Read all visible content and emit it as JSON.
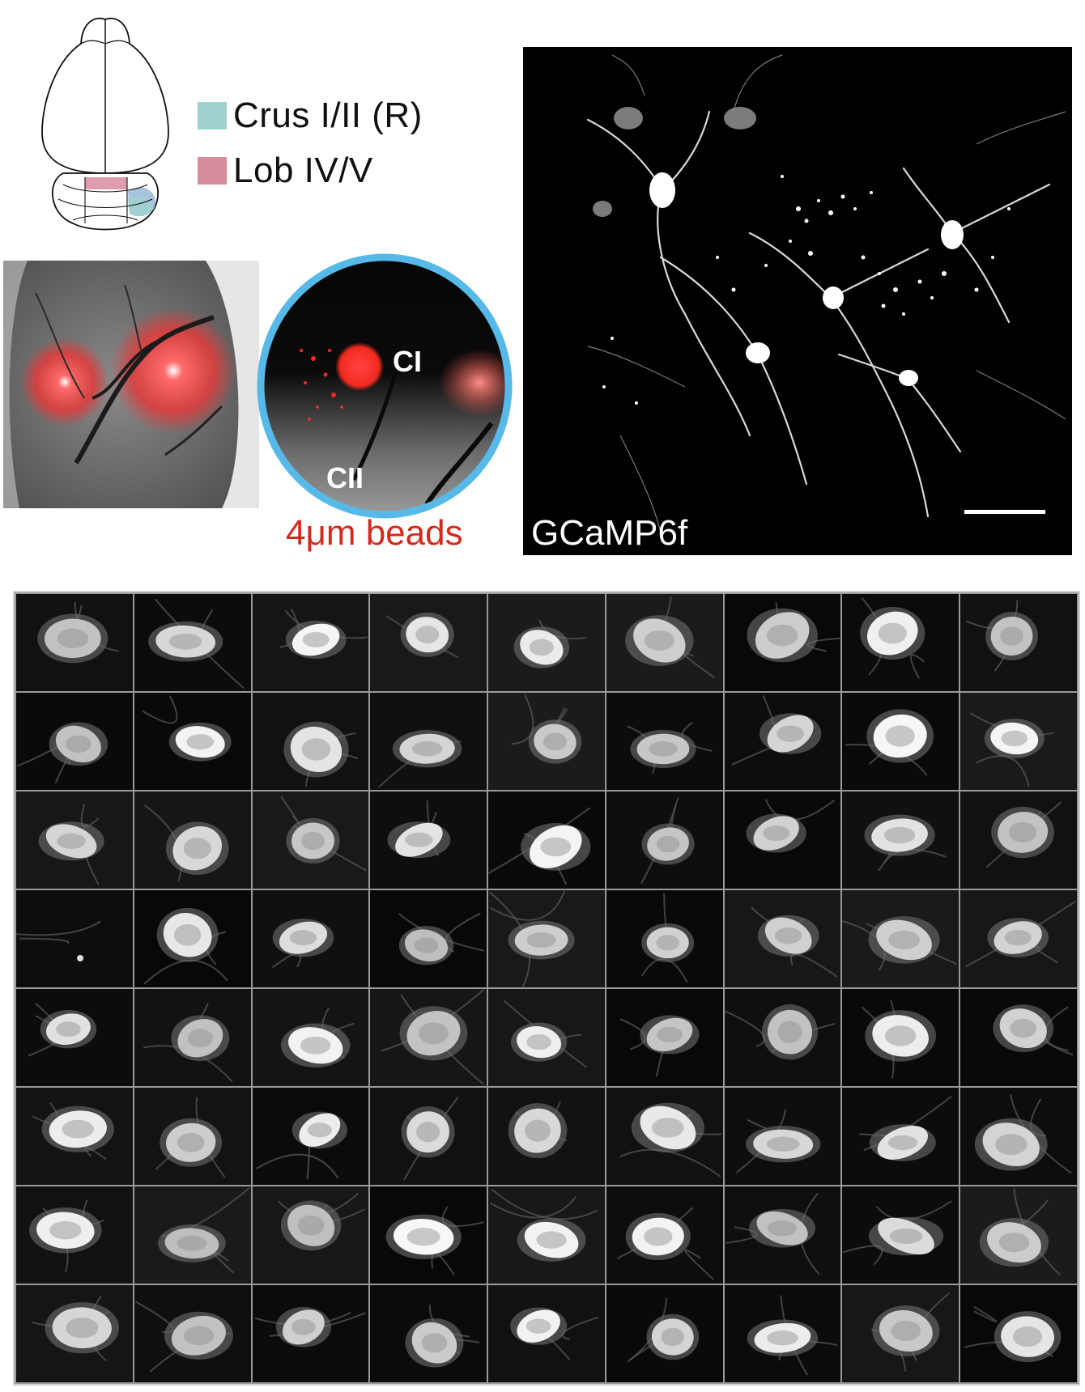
{
  "legend": {
    "items": [
      {
        "label": "Crus I/II (R)",
        "color": "#9fd1cf"
      },
      {
        "label": "Lob IV/V",
        "color": "#d98b9e"
      }
    ]
  },
  "window_image": {
    "labels": {
      "ci": "CI",
      "cii": "CII"
    },
    "beads_label": "4μm beads",
    "beads_color": "#d42a1e",
    "ring_color": "#57b9e8"
  },
  "gcamp_image": {
    "label": "GCaMP6f",
    "scale_bar": true
  },
  "mosaic": {
    "rows": 8,
    "columns": 9,
    "tile_count": 72
  }
}
